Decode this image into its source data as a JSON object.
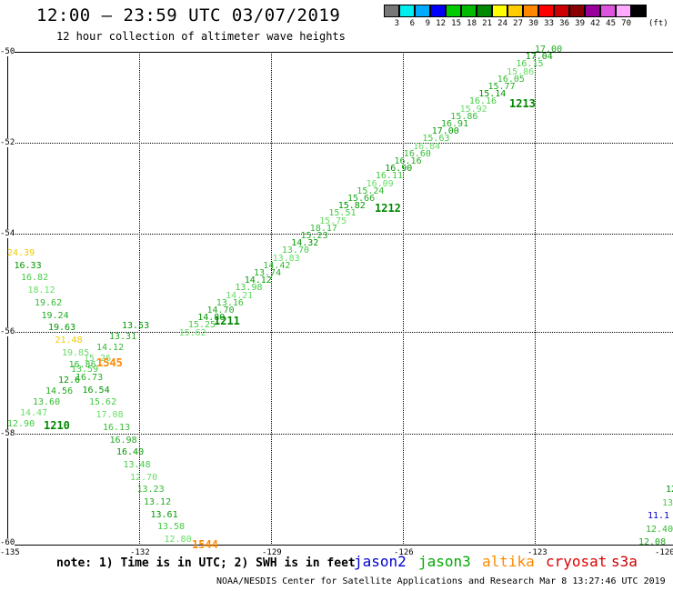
{
  "title": "12:00 — 23:59 UTC 03/07/2019",
  "subtitle": "12 hour collection of altimeter wave heights",
  "legend": {
    "colors": [
      "#777777",
      "#00eeee",
      "#00aaff",
      "#0000ff",
      "#00cc00",
      "#00bb00",
      "#008800",
      "#ffff00",
      "#ffcc00",
      "#ff8800",
      "#ff0000",
      "#cc0000",
      "#880000",
      "#990099",
      "#dd55dd",
      "#ffaaff",
      "#000000"
    ],
    "labels": [
      "3",
      "6",
      "9",
      "12",
      "15",
      "18",
      "21",
      "24",
      "27",
      "30",
      "33",
      "36",
      "39",
      "42",
      "45",
      "70"
    ],
    "unit": "(ft)"
  },
  "lat_labels": [
    "-50",
    "-52",
    "-54",
    "-56",
    "-58",
    "-60"
  ],
  "lon_labels": [
    "-135",
    "-132",
    "-129",
    "-126",
    "-123",
    "-120"
  ],
  "track_times": [
    "1213",
    "1212",
    "1211",
    "1210",
    "1545",
    "1544"
  ],
  "track_1213": [
    "17.00",
    "17.04",
    "16.15",
    "15.86",
    "16.05",
    "15.77",
    "15.14",
    "16.16",
    "15.92",
    "15.86",
    "16.91",
    "17.00",
    "15.63",
    "16.84",
    "16.60",
    "16.16",
    "16.90",
    "16.11",
    "16.09",
    "15.24",
    "15.66",
    "15.82",
    "15.51",
    "15.75",
    "18.17",
    "15.23",
    "14.32",
    "13.70",
    "13.83",
    "14.42",
    "13.74",
    "14.12",
    "13.98",
    "14.21",
    "13.16",
    "14.70",
    "14.80",
    "15.25",
    "15.62"
  ],
  "track_1210": [
    "12.90",
    "14.47",
    "13.60",
    "14.56",
    "12.6",
    "13.59",
    "15.26",
    "14.12",
    "13.31",
    "13.53"
  ],
  "track_west": [
    "24.39",
    "16.33",
    "16.82",
    "18.12",
    "19.62",
    "19.24",
    "19.63",
    "21.48",
    "19.85",
    "16.86",
    "16.73",
    "16.54",
    "15.62",
    "17.08",
    "16.13",
    "16.98",
    "16.40",
    "13.48",
    "12.70",
    "13.23",
    "13.12",
    "13.61",
    "13.58",
    "12.80"
  ],
  "track_east": [
    "12",
    "13",
    "11.1",
    "12.40",
    "12.08"
  ],
  "note": "note: 1) Time is in UTC; 2) SWH is in feet",
  "satellites": [
    {
      "name": "jason2",
      "color": "#0000cc"
    },
    {
      "name": "jason3",
      "color": "#00aa00"
    },
    {
      "name": "altika",
      "color": "#ff8800"
    },
    {
      "name": "cryosat",
      "color": "#dd0000"
    },
    {
      "name": "s3a",
      "color": "#cc0000"
    }
  ],
  "credit": "NOAA/NESDIS Center for Satellite Applications and Research   Mar  8 13:27:46 UTC 2019"
}
